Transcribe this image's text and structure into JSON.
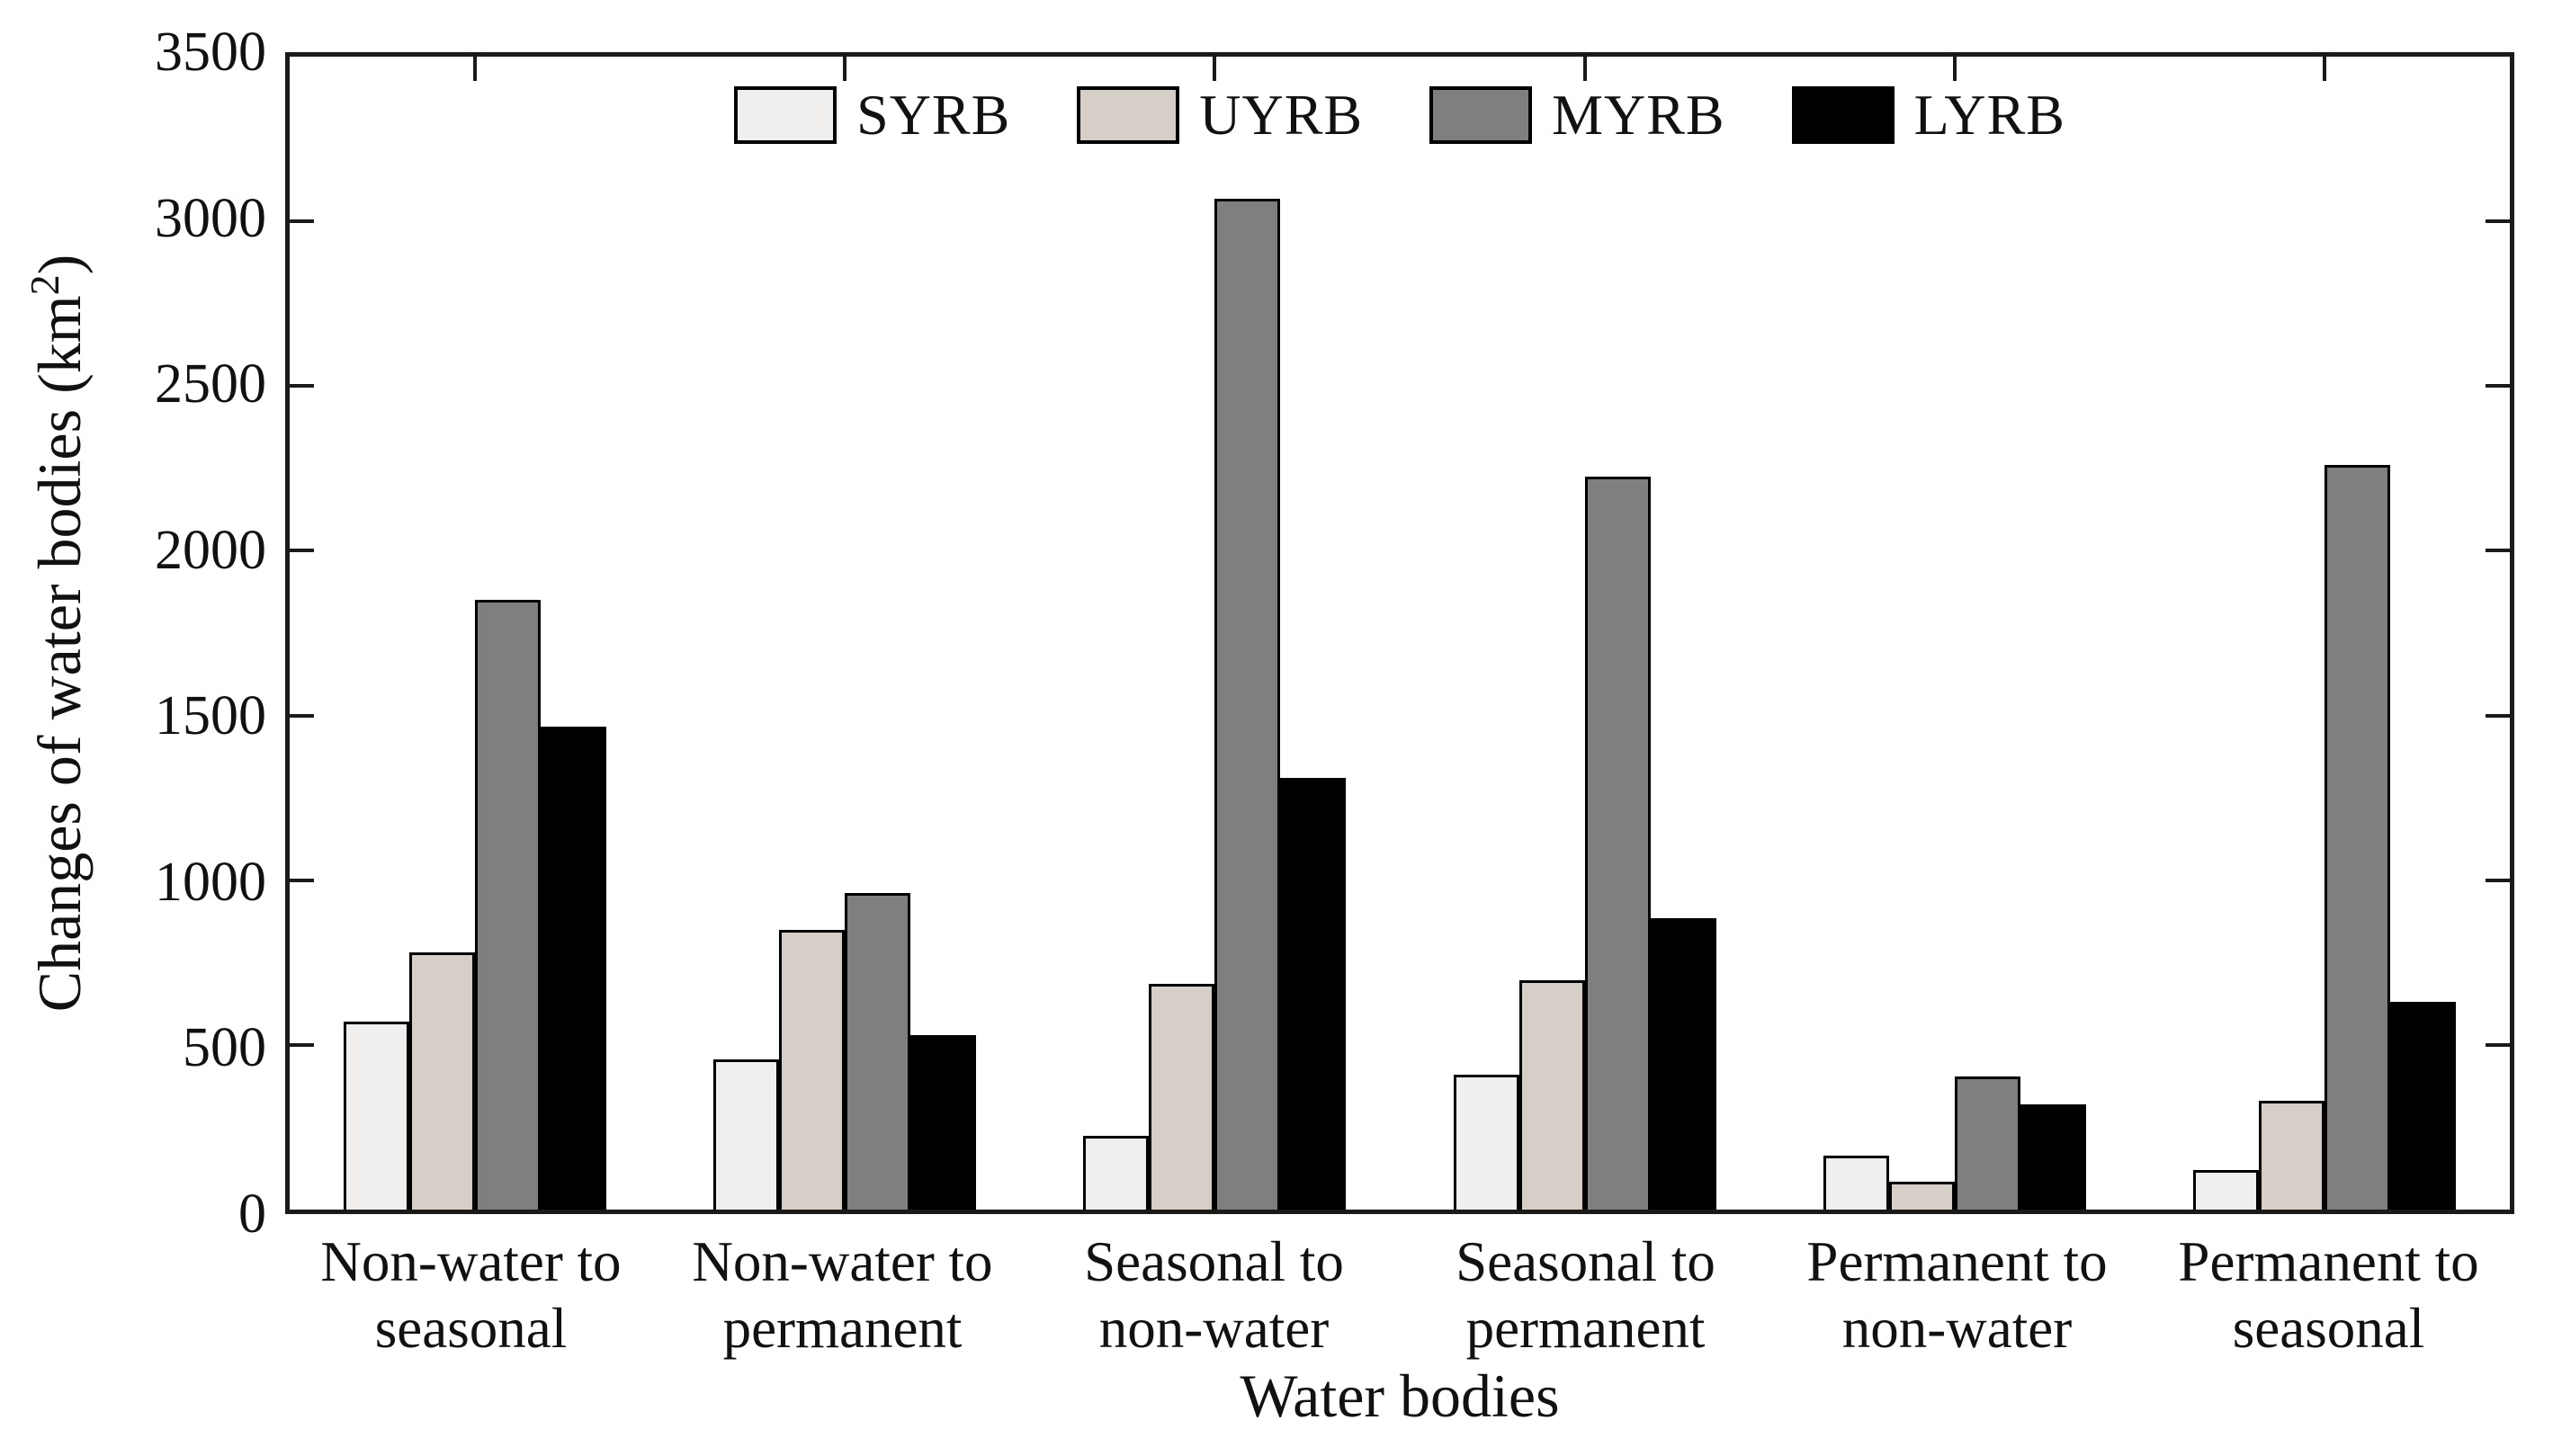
{
  "chart_data": {
    "type": "bar",
    "title": "",
    "xlabel": "Water bodies",
    "ylabel": "Changes of water bodies (km²)",
    "ylabel_parts": {
      "prefix": "Changes of water bodies (km",
      "sup": "2",
      "suffix": ")"
    },
    "ylim": [
      0,
      3500
    ],
    "yticks": [
      0,
      500,
      1000,
      1500,
      2000,
      2500,
      3000,
      3500
    ],
    "grid": false,
    "legend_position": "top-center-inside",
    "categories": [
      "Non-water to seasonal",
      "Non-water to permanent",
      "Seasonal to non-water",
      "Seasonal to permanent",
      "Permanent to non-water",
      "Permanent to seasonal"
    ],
    "series": [
      {
        "name": "SYRB",
        "color": "#f0efee",
        "values": [
          570,
          455,
          225,
          410,
          165,
          120
        ]
      },
      {
        "name": "UYRB",
        "color": "#d6cfc7",
        "values": [
          780,
          850,
          685,
          695,
          85,
          330
        ]
      },
      {
        "name": "MYRB",
        "color": "#7f7f7f",
        "values": [
          1850,
          960,
          3070,
          2225,
          405,
          2260
        ]
      },
      {
        "name": "LYRB",
        "color": "#000000",
        "values": [
          1465,
          530,
          1310,
          885,
          320,
          630
        ]
      }
    ]
  },
  "axis": {
    "frame_color": "#1a1a1a"
  }
}
